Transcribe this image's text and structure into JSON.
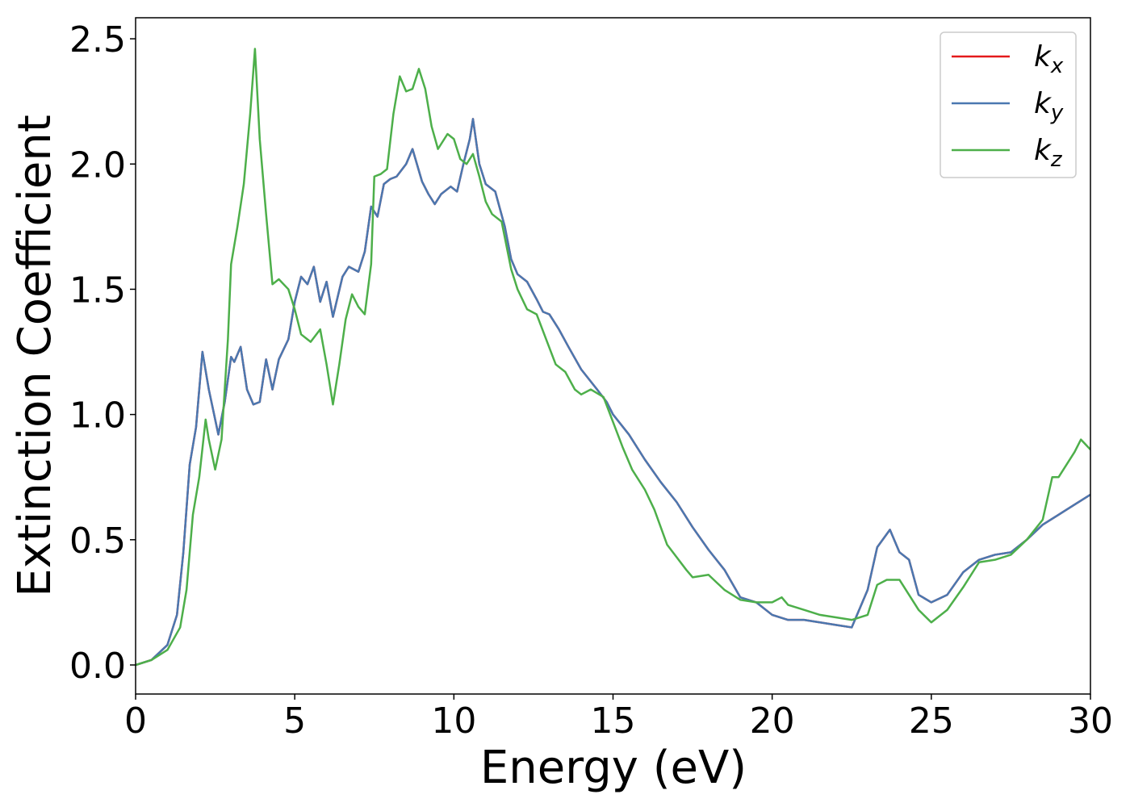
{
  "chart_data": {
    "type": "line",
    "xlabel": "Energy (eV)",
    "ylabel": "Extinction Coefficient",
    "xlim": [
      0,
      30
    ],
    "ylim": [
      -0.116,
      2.584
    ],
    "xticks": [
      0,
      5,
      10,
      15,
      20,
      25,
      30
    ],
    "yticks": [
      {
        "value": 0,
        "label": "0.0"
      },
      {
        "value": 0.5,
        "label": "0.5"
      },
      {
        "value": 1,
        "label": "1.0"
      },
      {
        "value": 1.5,
        "label": "1.5"
      },
      {
        "value": 2,
        "label": "2.0"
      },
      {
        "value": 2.5,
        "label": "2.5"
      }
    ],
    "legend": "upper right",
    "series": [
      {
        "name": "kx",
        "color": "#e41a1c",
        "x": [
          0,
          0.5,
          1.0,
          1.3,
          1.5,
          1.7,
          1.9,
          2.1,
          2.3,
          2.6,
          2.8,
          3.0,
          3.1,
          3.3,
          3.5,
          3.7,
          3.9,
          4.1,
          4.3,
          4.5,
          4.8,
          5.0,
          5.2,
          5.4,
          5.6,
          5.8,
          6.0,
          6.2,
          6.5,
          6.7,
          7.0,
          7.2,
          7.4,
          7.6,
          7.8,
          8.0,
          8.2,
          8.5,
          8.7,
          9.0,
          9.2,
          9.4,
          9.6,
          9.9,
          10.1,
          10.3,
          10.5,
          10.6,
          10.8,
          11.0,
          11.3,
          11.6,
          11.8,
          12.0,
          12.3,
          12.6,
          12.8,
          13.0,
          13.3,
          13.6,
          14.0,
          14.5,
          14.8,
          15.0,
          15.5,
          16.0,
          16.5,
          17.0,
          17.5,
          18.0,
          18.5,
          19.0,
          19.5,
          20.0,
          20.5,
          21.0,
          21.5,
          22.0,
          22.5,
          23.0,
          23.3,
          23.7,
          24.0,
          24.3,
          24.6,
          25.0,
          25.5,
          26.0,
          26.5,
          27.0,
          27.5,
          28.0,
          28.5,
          29.0,
          29.5,
          30.0
        ],
        "values": [
          0,
          0.02,
          0.08,
          0.2,
          0.45,
          0.8,
          0.95,
          1.25,
          1.1,
          0.92,
          1.05,
          1.23,
          1.21,
          1.27,
          1.1,
          1.04,
          1.05,
          1.22,
          1.1,
          1.22,
          1.3,
          1.45,
          1.55,
          1.52,
          1.59,
          1.45,
          1.53,
          1.39,
          1.55,
          1.59,
          1.57,
          1.65,
          1.83,
          1.79,
          1.92,
          1.94,
          1.95,
          2.0,
          2.06,
          1.93,
          1.88,
          1.84,
          1.88,
          1.91,
          1.89,
          2.0,
          2.1,
          2.18,
          2.0,
          1.92,
          1.89,
          1.75,
          1.62,
          1.56,
          1.53,
          1.46,
          1.41,
          1.4,
          1.34,
          1.27,
          1.18,
          1.1,
          1.05,
          1.0,
          0.92,
          0.82,
          0.73,
          0.65,
          0.55,
          0.46,
          0.38,
          0.27,
          0.25,
          0.2,
          0.18,
          0.18,
          0.17,
          0.16,
          0.15,
          0.3,
          0.47,
          0.54,
          0.45,
          0.42,
          0.28,
          0.25,
          0.28,
          0.37,
          0.42,
          0.44,
          0.45,
          0.5,
          0.56,
          0.6,
          0.64,
          0.68
        ]
      },
      {
        "name": "ky",
        "color": "#4a78b0",
        "x": [
          0,
          0.5,
          1.0,
          1.3,
          1.5,
          1.7,
          1.9,
          2.1,
          2.3,
          2.6,
          2.8,
          3.0,
          3.1,
          3.3,
          3.5,
          3.7,
          3.9,
          4.1,
          4.3,
          4.5,
          4.8,
          5.0,
          5.2,
          5.4,
          5.6,
          5.8,
          6.0,
          6.2,
          6.5,
          6.7,
          7.0,
          7.2,
          7.4,
          7.6,
          7.8,
          8.0,
          8.2,
          8.5,
          8.7,
          9.0,
          9.2,
          9.4,
          9.6,
          9.9,
          10.1,
          10.3,
          10.5,
          10.6,
          10.8,
          11.0,
          11.3,
          11.6,
          11.8,
          12.0,
          12.3,
          12.6,
          12.8,
          13.0,
          13.3,
          13.6,
          14.0,
          14.5,
          14.8,
          15.0,
          15.5,
          16.0,
          16.5,
          17.0,
          17.5,
          18.0,
          18.5,
          19.0,
          19.5,
          20.0,
          20.5,
          21.0,
          21.5,
          22.0,
          22.5,
          23.0,
          23.3,
          23.7,
          24.0,
          24.3,
          24.6,
          25.0,
          25.5,
          26.0,
          26.5,
          27.0,
          27.5,
          28.0,
          28.5,
          29.0,
          29.5,
          30.0
        ],
        "values": [
          0,
          0.02,
          0.08,
          0.2,
          0.45,
          0.8,
          0.95,
          1.25,
          1.1,
          0.92,
          1.05,
          1.23,
          1.21,
          1.27,
          1.1,
          1.04,
          1.05,
          1.22,
          1.1,
          1.22,
          1.3,
          1.45,
          1.55,
          1.52,
          1.59,
          1.45,
          1.53,
          1.39,
          1.55,
          1.59,
          1.57,
          1.65,
          1.83,
          1.79,
          1.92,
          1.94,
          1.95,
          2.0,
          2.06,
          1.93,
          1.88,
          1.84,
          1.88,
          1.91,
          1.89,
          2.0,
          2.1,
          2.18,
          2.0,
          1.92,
          1.89,
          1.75,
          1.62,
          1.56,
          1.53,
          1.46,
          1.41,
          1.4,
          1.34,
          1.27,
          1.18,
          1.1,
          1.05,
          1.0,
          0.92,
          0.82,
          0.73,
          0.65,
          0.55,
          0.46,
          0.38,
          0.27,
          0.25,
          0.2,
          0.18,
          0.18,
          0.17,
          0.16,
          0.15,
          0.3,
          0.47,
          0.54,
          0.45,
          0.42,
          0.28,
          0.25,
          0.28,
          0.37,
          0.42,
          0.44,
          0.45,
          0.5,
          0.56,
          0.6,
          0.64,
          0.68
        ]
      },
      {
        "name": "kz",
        "color": "#4daf4a",
        "x": [
          0,
          0.5,
          1.0,
          1.4,
          1.6,
          1.8,
          2.0,
          2.2,
          2.3,
          2.5,
          2.7,
          2.9,
          3.0,
          3.2,
          3.4,
          3.6,
          3.75,
          3.9,
          4.1,
          4.3,
          4.5,
          4.8,
          5.0,
          5.2,
          5.5,
          5.8,
          6.0,
          6.2,
          6.4,
          6.6,
          6.8,
          7.0,
          7.2,
          7.4,
          7.5,
          7.7,
          7.9,
          8.1,
          8.3,
          8.5,
          8.7,
          8.9,
          9.1,
          9.3,
          9.5,
          9.8,
          10.0,
          10.2,
          10.4,
          10.6,
          10.8,
          11.0,
          11.2,
          11.5,
          11.8,
          12.0,
          12.3,
          12.6,
          12.9,
          13.2,
          13.5,
          13.8,
          14.0,
          14.3,
          14.7,
          15.0,
          15.3,
          15.6,
          16.0,
          16.3,
          16.7,
          17.0,
          17.3,
          17.5,
          18.0,
          18.5,
          19.0,
          19.5,
          20.0,
          20.3,
          20.5,
          21.0,
          21.5,
          22.0,
          22.5,
          23.0,
          23.3,
          23.6,
          24.0,
          24.3,
          24.6,
          25.0,
          25.5,
          26.0,
          26.5,
          27.0,
          27.5,
          28.0,
          28.5,
          28.8,
          29.0,
          29.5,
          29.7,
          30.0
        ],
        "values": [
          0,
          0.02,
          0.06,
          0.15,
          0.3,
          0.6,
          0.75,
          0.98,
          0.9,
          0.78,
          0.9,
          1.3,
          1.6,
          1.75,
          1.92,
          2.2,
          2.46,
          2.1,
          1.8,
          1.52,
          1.54,
          1.5,
          1.42,
          1.32,
          1.29,
          1.34,
          1.2,
          1.04,
          1.2,
          1.38,
          1.48,
          1.43,
          1.4,
          1.6,
          1.95,
          1.96,
          1.98,
          2.2,
          2.35,
          2.29,
          2.3,
          2.38,
          2.3,
          2.15,
          2.06,
          2.12,
          2.1,
          2.02,
          2.0,
          2.04,
          1.95,
          1.85,
          1.8,
          1.77,
          1.58,
          1.5,
          1.42,
          1.4,
          1.3,
          1.2,
          1.17,
          1.1,
          1.08,
          1.1,
          1.07,
          0.97,
          0.87,
          0.78,
          0.7,
          0.62,
          0.48,
          0.43,
          0.38,
          0.35,
          0.36,
          0.3,
          0.26,
          0.25,
          0.25,
          0.27,
          0.24,
          0.22,
          0.2,
          0.19,
          0.18,
          0.2,
          0.32,
          0.34,
          0.34,
          0.28,
          0.22,
          0.17,
          0.22,
          0.31,
          0.41,
          0.42,
          0.44,
          0.5,
          0.58,
          0.75,
          0.75,
          0.85,
          0.9,
          0.86
        ]
      }
    ]
  }
}
